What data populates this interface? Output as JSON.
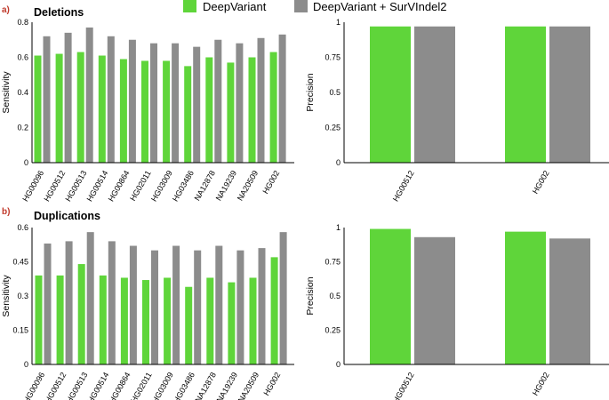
{
  "colors": {
    "deepvariant": "#5fd53a",
    "survindel": "#8c8c8c",
    "axis": "#000000"
  },
  "legend": {
    "items": [
      "DeepVariant",
      "DeepVariant + SurVIndel2"
    ]
  },
  "panels": [
    {
      "label": "a)",
      "title": "Deletions"
    },
    {
      "label": "b)",
      "title": "Duplications"
    }
  ],
  "chart_data": [
    {
      "type": "bar",
      "panel": "a",
      "title": "Deletions",
      "xlabel": "",
      "ylabel": "Sensitivity",
      "ylim": [
        0,
        0.8
      ],
      "yticks": [
        0,
        0.2,
        0.4,
        0.6,
        0.8
      ],
      "categories": [
        "HG00096",
        "HG00512",
        "HG00513",
        "HG00514",
        "HG00864",
        "HG02011",
        "HG03009",
        "HG03486",
        "NA12878",
        "NA19239",
        "NA20509",
        "HG002"
      ],
      "series": [
        {
          "name": "DeepVariant",
          "values": [
            0.61,
            0.62,
            0.63,
            0.61,
            0.59,
            0.58,
            0.58,
            0.55,
            0.6,
            0.57,
            0.6,
            0.63
          ]
        },
        {
          "name": "DeepVariant + SurVIndel2",
          "values": [
            0.72,
            0.74,
            0.77,
            0.72,
            0.7,
            0.68,
            0.68,
            0.66,
            0.7,
            0.68,
            0.71,
            0.73
          ]
        }
      ]
    },
    {
      "type": "bar",
      "panel": "a",
      "title": "",
      "xlabel": "",
      "ylabel": "Precision",
      "ylim": [
        0,
        1
      ],
      "yticks": [
        0,
        0.25,
        0.5,
        0.75,
        1
      ],
      "categories": [
        "HG00512",
        "HG002"
      ],
      "series": [
        {
          "name": "DeepVariant",
          "values": [
            0.97,
            0.97
          ]
        },
        {
          "name": "DeepVariant + SurVIndel2",
          "values": [
            0.97,
            0.97
          ]
        }
      ]
    },
    {
      "type": "bar",
      "panel": "b",
      "title": "Duplications",
      "xlabel": "",
      "ylabel": "Sensitivity",
      "ylim": [
        0,
        0.6
      ],
      "yticks": [
        0,
        0.15,
        0.3,
        0.45,
        0.6
      ],
      "categories": [
        "HG00096",
        "HG00512",
        "HG00513",
        "HG00514",
        "HG00864",
        "HG02011",
        "HG03009",
        "HG03486",
        "NA12878",
        "NA19239",
        "NA20509",
        "HG002"
      ],
      "series": [
        {
          "name": "DeepVariant",
          "values": [
            0.39,
            0.39,
            0.44,
            0.39,
            0.38,
            0.37,
            0.38,
            0.34,
            0.38,
            0.36,
            0.38,
            0.47
          ]
        },
        {
          "name": "DeepVariant + SurVIndel2",
          "values": [
            0.53,
            0.54,
            0.58,
            0.54,
            0.52,
            0.5,
            0.52,
            0.5,
            0.52,
            0.5,
            0.51,
            0.58
          ]
        }
      ]
    },
    {
      "type": "bar",
      "panel": "b",
      "title": "",
      "xlabel": "",
      "ylabel": "Precision",
      "ylim": [
        0,
        1
      ],
      "yticks": [
        0,
        0.25,
        0.5,
        0.75,
        1
      ],
      "categories": [
        "HG00512",
        "HG002"
      ],
      "series": [
        {
          "name": "DeepVariant",
          "values": [
            0.99,
            0.97
          ]
        },
        {
          "name": "DeepVariant + SurVIndel2",
          "values": [
            0.93,
            0.92
          ]
        }
      ]
    }
  ]
}
